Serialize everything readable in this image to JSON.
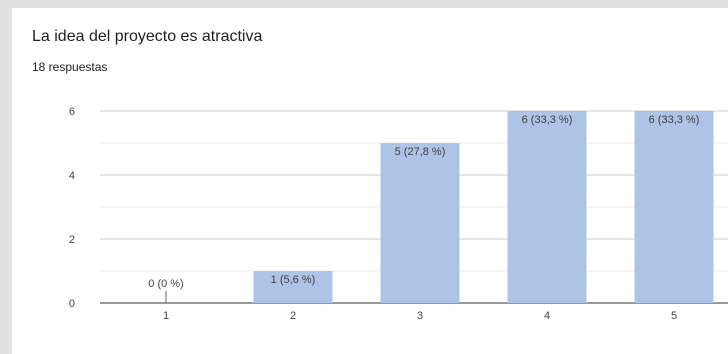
{
  "question": {
    "title": "La idea del proyecto es atractiva",
    "responses": "18 respuestas"
  },
  "chart_data": {
    "type": "bar",
    "title": "La idea del proyecto es atractiva",
    "categories": [
      "1",
      "2",
      "3",
      "4",
      "5"
    ],
    "values": [
      0,
      1,
      5,
      6,
      6
    ],
    "data_labels": [
      "0 (0 %)",
      "1 (5,6 %)",
      "5 (27,8 %)",
      "6 (33,3 %)",
      "6 (33,3 %)"
    ],
    "y_ticks": [
      "0",
      "2",
      "4",
      "6"
    ],
    "ylim": [
      0,
      6
    ],
    "xlabel": "",
    "ylabel": "",
    "grid": true,
    "bar_color": "#aec4e6"
  }
}
